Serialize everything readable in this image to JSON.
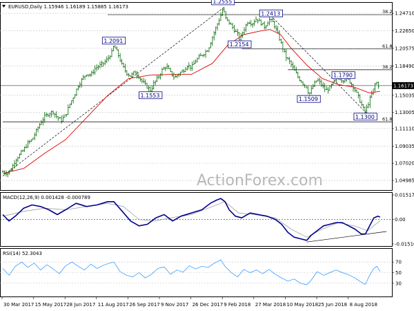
{
  "chart_data": [
    {
      "type": "line",
      "subtype": "ohlc",
      "title": "EURUSD,Daily  1.15946 1.16189 1.15885 1.16173",
      "x_tick_labels": [
        "30 Mar 2017",
        "15 May 2017",
        "28 Jun 2017",
        "11 Aug 2017",
        "26 Sep 2017",
        "9 Nov 2017",
        "26 Dec 2017",
        "9 Feb 2018",
        "27 Mar 2018",
        "10 May 2018",
        "25 Jun 2018",
        "8 Aug 2018"
      ],
      "y_tick_labels": [
        "1.24710",
        "1.22650",
        "1.20575",
        "1.18490",
        "1.16173",
        "1.15035",
        "1.13005",
        "1.11110",
        "1.09035",
        "1.07020",
        "1.04985"
      ],
      "ylim": [
        1.0385,
        1.2595
      ],
      "last_price": "1.16173",
      "price_path": [
        {
          "i": 0,
          "v": 1.06
        },
        {
          "i": 4,
          "v": 1.058
        },
        {
          "i": 8,
          "v": 1.063
        },
        {
          "i": 12,
          "v": 1.074
        },
        {
          "i": 16,
          "v": 1.08
        },
        {
          "i": 20,
          "v": 1.086
        },
        {
          "i": 24,
          "v": 1.094
        },
        {
          "i": 28,
          "v": 1.098
        },
        {
          "i": 32,
          "v": 1.108
        },
        {
          "i": 36,
          "v": 1.118
        },
        {
          "i": 40,
          "v": 1.125
        },
        {
          "i": 44,
          "v": 1.129
        },
        {
          "i": 48,
          "v": 1.131
        },
        {
          "i": 52,
          "v": 1.124
        },
        {
          "i": 56,
          "v": 1.121
        },
        {
          "i": 60,
          "v": 1.127
        },
        {
          "i": 64,
          "v": 1.14
        },
        {
          "i": 68,
          "v": 1.15
        },
        {
          "i": 72,
          "v": 1.162
        },
        {
          "i": 76,
          "v": 1.17
        },
        {
          "i": 80,
          "v": 1.176
        },
        {
          "i": 84,
          "v": 1.174
        },
        {
          "i": 88,
          "v": 1.182
        },
        {
          "i": 92,
          "v": 1.185
        },
        {
          "i": 96,
          "v": 1.188
        },
        {
          "i": 100,
          "v": 1.193
        },
        {
          "i": 104,
          "v": 1.201
        },
        {
          "i": 106,
          "v": 1.209
        },
        {
          "i": 110,
          "v": 1.199
        },
        {
          "i": 114,
          "v": 1.185
        },
        {
          "i": 118,
          "v": 1.177
        },
        {
          "i": 122,
          "v": 1.173
        },
        {
          "i": 126,
          "v": 1.178
        },
        {
          "i": 130,
          "v": 1.172
        },
        {
          "i": 134,
          "v": 1.165
        },
        {
          "i": 138,
          "v": 1.16
        },
        {
          "i": 141,
          "v": 1.156
        },
        {
          "i": 144,
          "v": 1.164
        },
        {
          "i": 148,
          "v": 1.171
        },
        {
          "i": 152,
          "v": 1.18
        },
        {
          "i": 156,
          "v": 1.185
        },
        {
          "i": 160,
          "v": 1.177
        },
        {
          "i": 164,
          "v": 1.171
        },
        {
          "i": 168,
          "v": 1.176
        },
        {
          "i": 172,
          "v": 1.179
        },
        {
          "i": 176,
          "v": 1.186
        },
        {
          "i": 180,
          "v": 1.183
        },
        {
          "i": 184,
          "v": 1.191
        },
        {
          "i": 188,
          "v": 1.196
        },
        {
          "i": 192,
          "v": 1.2
        },
        {
          "i": 196,
          "v": 1.205
        },
        {
          "i": 200,
          "v": 1.219
        },
        {
          "i": 204,
          "v": 1.232
        },
        {
          "i": 208,
          "v": 1.245
        },
        {
          "i": 210,
          "v": 1.253
        },
        {
          "i": 213,
          "v": 1.24
        },
        {
          "i": 216,
          "v": 1.236
        },
        {
          "i": 220,
          "v": 1.229
        },
        {
          "i": 224,
          "v": 1.222
        },
        {
          "i": 226,
          "v": 1.216
        },
        {
          "i": 230,
          "v": 1.228
        },
        {
          "i": 234,
          "v": 1.238
        },
        {
          "i": 238,
          "v": 1.235
        },
        {
          "i": 242,
          "v": 1.241
        },
        {
          "i": 246,
          "v": 1.236
        },
        {
          "i": 250,
          "v": 1.231
        },
        {
          "i": 254,
          "v": 1.24
        },
        {
          "i": 258,
          "v": 1.236
        },
        {
          "i": 262,
          "v": 1.224
        },
        {
          "i": 266,
          "v": 1.21
        },
        {
          "i": 270,
          "v": 1.196
        },
        {
          "i": 274,
          "v": 1.189
        },
        {
          "i": 278,
          "v": 1.18
        },
        {
          "i": 282,
          "v": 1.171
        },
        {
          "i": 286,
          "v": 1.165
        },
        {
          "i": 290,
          "v": 1.16
        },
        {
          "i": 292,
          "v": 1.151
        },
        {
          "i": 296,
          "v": 1.161
        },
        {
          "i": 300,
          "v": 1.169
        },
        {
          "i": 304,
          "v": 1.163
        },
        {
          "i": 308,
          "v": 1.156
        },
        {
          "i": 312,
          "v": 1.159
        },
        {
          "i": 316,
          "v": 1.166
        },
        {
          "i": 320,
          "v": 1.172
        },
        {
          "i": 324,
          "v": 1.168
        },
        {
          "i": 328,
          "v": 1.171
        },
        {
          "i": 332,
          "v": 1.165
        },
        {
          "i": 336,
          "v": 1.157
        },
        {
          "i": 340,
          "v": 1.146
        },
        {
          "i": 344,
          "v": 1.134
        },
        {
          "i": 346,
          "v": 1.131
        },
        {
          "i": 350,
          "v": 1.145
        },
        {
          "i": 354,
          "v": 1.158
        },
        {
          "i": 356,
          "v": 1.167
        },
        {
          "i": 358,
          "v": 1.162
        },
        {
          "i": 360,
          "v": 1.1617
        }
      ],
      "ma_path": [
        {
          "i": 0,
          "v": 1.058
        },
        {
          "i": 20,
          "v": 1.064
        },
        {
          "i": 40,
          "v": 1.082
        },
        {
          "i": 60,
          "v": 1.098
        },
        {
          "i": 80,
          "v": 1.124
        },
        {
          "i": 100,
          "v": 1.15
        },
        {
          "i": 120,
          "v": 1.17
        },
        {
          "i": 140,
          "v": 1.174
        },
        {
          "i": 160,
          "v": 1.175
        },
        {
          "i": 180,
          "v": 1.175
        },
        {
          "i": 200,
          "v": 1.188
        },
        {
          "i": 215,
          "v": 1.21
        },
        {
          "i": 230,
          "v": 1.222
        },
        {
          "i": 245,
          "v": 1.226
        },
        {
          "i": 255,
          "v": 1.228
        },
        {
          "i": 265,
          "v": 1.222
        },
        {
          "i": 275,
          "v": 1.206
        },
        {
          "i": 290,
          "v": 1.186
        },
        {
          "i": 305,
          "v": 1.17
        },
        {
          "i": 320,
          "v": 1.163
        },
        {
          "i": 335,
          "v": 1.16
        },
        {
          "i": 350,
          "v": 1.153
        },
        {
          "i": 360,
          "v": 1.155
        }
      ],
      "annotations": [
        {
          "label": "1.2555",
          "i": 210,
          "v": 1.2555
        },
        {
          "label": "1.2413",
          "i": 256,
          "v": 1.2413
        },
        {
          "label": "1.2154",
          "i": 226,
          "v": 1.2154
        },
        {
          "label": "1.2091",
          "i": 106,
          "v": 1.2091
        },
        {
          "label": "1.1553",
          "i": 141,
          "v": 1.1553
        },
        {
          "label": "1.1509",
          "i": 292,
          "v": 1.1509
        },
        {
          "label": "1.1790",
          "i": 325,
          "v": 1.179
        },
        {
          "label": "1.1300",
          "i": 346,
          "v": 1.13
        }
      ],
      "fib_levels": [
        {
          "label": "38.2",
          "v": 1.2455,
          "from_i": 100
        },
        {
          "label": "61.8",
          "v": 1.205,
          "from_i": 228
        },
        {
          "label": "38.2",
          "v": 1.1805,
          "from_i": 272
        },
        {
          "label": "61.8",
          "v": 1.119,
          "from_i": 0
        }
      ],
      "trendlines": [
        {
          "i1": 0,
          "v1": 1.055,
          "i2": 212,
          "v2": 1.255
        },
        {
          "i1": 258,
          "v1": 1.2413,
          "i2": 348,
          "v2": 1.128
        }
      ],
      "price_line": 1.16173,
      "colors": {
        "price": "#006400",
        "ma": "#e00000",
        "ann": "#000080",
        "text": "#000000",
        "grid": "#c0c0c0"
      },
      "watermark": "ActionForex.com"
    },
    {
      "type": "line",
      "title": "MACD(12,26,9) 0.001428 -0.000789",
      "ylim": [
        -0.0165,
        0.0165
      ],
      "y_tick_labels": [
        "0.015176",
        "0.00",
        "-0.015109"
      ],
      "zero_line": 0,
      "macd_path": [
        {
          "i": 0,
          "v": 0.003
        },
        {
          "i": 6,
          "v": -0.001
        },
        {
          "i": 12,
          "v": 0.002
        },
        {
          "i": 20,
          "v": 0.007
        },
        {
          "i": 28,
          "v": 0.009
        },
        {
          "i": 36,
          "v": 0.008
        },
        {
          "i": 44,
          "v": 0.006
        },
        {
          "i": 52,
          "v": 0.003
        },
        {
          "i": 60,
          "v": 0.006
        },
        {
          "i": 70,
          "v": 0.01
        },
        {
          "i": 80,
          "v": 0.008
        },
        {
          "i": 90,
          "v": 0.009
        },
        {
          "i": 100,
          "v": 0.011
        },
        {
          "i": 106,
          "v": 0.011
        },
        {
          "i": 114,
          "v": 0.005
        },
        {
          "i": 122,
          "v": -0.001
        },
        {
          "i": 130,
          "v": -0.004
        },
        {
          "i": 138,
          "v": -0.003
        },
        {
          "i": 146,
          "v": 0.001
        },
        {
          "i": 154,
          "v": 0.003
        },
        {
          "i": 162,
          "v": -0.001
        },
        {
          "i": 170,
          "v": 0.002
        },
        {
          "i": 180,
          "v": 0.004
        },
        {
          "i": 190,
          "v": 0.006
        },
        {
          "i": 198,
          "v": 0.01
        },
        {
          "i": 204,
          "v": 0.012
        },
        {
          "i": 208,
          "v": 0.013
        },
        {
          "i": 212,
          "v": 0.011
        },
        {
          "i": 216,
          "v": 0.006
        },
        {
          "i": 222,
          "v": 0.002
        },
        {
          "i": 228,
          "v": 0.001
        },
        {
          "i": 236,
          "v": 0.004
        },
        {
          "i": 244,
          "v": 0.003
        },
        {
          "i": 252,
          "v": 0.002
        },
        {
          "i": 260,
          "v": 0.0
        },
        {
          "i": 266,
          "v": -0.003
        },
        {
          "i": 272,
          "v": -0.008
        },
        {
          "i": 278,
          "v": -0.011
        },
        {
          "i": 284,
          "v": -0.012
        },
        {
          "i": 290,
          "v": -0.013
        },
        {
          "i": 294,
          "v": -0.01
        },
        {
          "i": 300,
          "v": -0.007
        },
        {
          "i": 306,
          "v": -0.004
        },
        {
          "i": 312,
          "v": -0.003
        },
        {
          "i": 318,
          "v": -0.002
        },
        {
          "i": 324,
          "v": -0.002
        },
        {
          "i": 330,
          "v": -0.004
        },
        {
          "i": 336,
          "v": -0.006
        },
        {
          "i": 342,
          "v": -0.009
        },
        {
          "i": 346,
          "v": -0.009
        },
        {
          "i": 350,
          "v": -0.004
        },
        {
          "i": 354,
          "v": 0.001
        },
        {
          "i": 358,
          "v": 0.002
        },
        {
          "i": 360,
          "v": 0.0014
        }
      ],
      "signal_path": [
        {
          "i": 0,
          "v": 0.002
        },
        {
          "i": 20,
          "v": 0.005
        },
        {
          "i": 40,
          "v": 0.007
        },
        {
          "i": 60,
          "v": 0.006
        },
        {
          "i": 80,
          "v": 0.008
        },
        {
          "i": 100,
          "v": 0.01
        },
        {
          "i": 115,
          "v": 0.008
        },
        {
          "i": 130,
          "v": 0.0
        },
        {
          "i": 145,
          "v": -0.001
        },
        {
          "i": 160,
          "v": 0.001
        },
        {
          "i": 180,
          "v": 0.003
        },
        {
          "i": 200,
          "v": 0.008
        },
        {
          "i": 212,
          "v": 0.011
        },
        {
          "i": 225,
          "v": 0.004
        },
        {
          "i": 240,
          "v": 0.003
        },
        {
          "i": 260,
          "v": 0.001
        },
        {
          "i": 275,
          "v": -0.006
        },
        {
          "i": 290,
          "v": -0.011
        },
        {
          "i": 305,
          "v": -0.006
        },
        {
          "i": 320,
          "v": -0.002
        },
        {
          "i": 335,
          "v": -0.004
        },
        {
          "i": 348,
          "v": -0.007
        },
        {
          "i": 360,
          "v": -0.0008
        }
      ],
      "trendline": {
        "i1": 290,
        "v1": -0.014,
        "i2": 366,
        "v2": -0.0075
      },
      "colors": {
        "macd": "#00008b",
        "signal": "#a0a0a0"
      }
    },
    {
      "type": "line",
      "title": "RSI(14) 52.3043",
      "ylim": [
        5,
        95
      ],
      "y_tick_labels": [
        "70",
        "50",
        "30"
      ],
      "grid_levels": [
        70,
        50,
        30
      ],
      "rsi_path": [
        {
          "i": 0,
          "v": 58
        },
        {
          "i": 6,
          "v": 45
        },
        {
          "i": 12,
          "v": 62
        },
        {
          "i": 18,
          "v": 70
        },
        {
          "i": 24,
          "v": 60
        },
        {
          "i": 30,
          "v": 68
        },
        {
          "i": 36,
          "v": 55
        },
        {
          "i": 42,
          "v": 65
        },
        {
          "i": 48,
          "v": 57
        },
        {
          "i": 54,
          "v": 48
        },
        {
          "i": 60,
          "v": 63
        },
        {
          "i": 66,
          "v": 70
        },
        {
          "i": 72,
          "v": 62
        },
        {
          "i": 78,
          "v": 55
        },
        {
          "i": 84,
          "v": 66
        },
        {
          "i": 90,
          "v": 58
        },
        {
          "i": 96,
          "v": 64
        },
        {
          "i": 102,
          "v": 68
        },
        {
          "i": 106,
          "v": 70
        },
        {
          "i": 112,
          "v": 52
        },
        {
          "i": 118,
          "v": 45
        },
        {
          "i": 124,
          "v": 42
        },
        {
          "i": 130,
          "v": 50
        },
        {
          "i": 136,
          "v": 40
        },
        {
          "i": 142,
          "v": 47
        },
        {
          "i": 148,
          "v": 58
        },
        {
          "i": 154,
          "v": 61
        },
        {
          "i": 160,
          "v": 47
        },
        {
          "i": 166,
          "v": 55
        },
        {
          "i": 172,
          "v": 51
        },
        {
          "i": 178,
          "v": 63
        },
        {
          "i": 184,
          "v": 57
        },
        {
          "i": 190,
          "v": 62
        },
        {
          "i": 196,
          "v": 60
        },
        {
          "i": 202,
          "v": 68
        },
        {
          "i": 208,
          "v": 74
        },
        {
          "i": 212,
          "v": 62
        },
        {
          "i": 218,
          "v": 50
        },
        {
          "i": 224,
          "v": 42
        },
        {
          "i": 230,
          "v": 56
        },
        {
          "i": 236,
          "v": 50
        },
        {
          "i": 242,
          "v": 55
        },
        {
          "i": 248,
          "v": 48
        },
        {
          "i": 254,
          "v": 56
        },
        {
          "i": 260,
          "v": 47
        },
        {
          "i": 266,
          "v": 40
        },
        {
          "i": 272,
          "v": 34
        },
        {
          "i": 278,
          "v": 38
        },
        {
          "i": 284,
          "v": 30
        },
        {
          "i": 290,
          "v": 27
        },
        {
          "i": 294,
          "v": 35
        },
        {
          "i": 300,
          "v": 52
        },
        {
          "i": 306,
          "v": 45
        },
        {
          "i": 312,
          "v": 50
        },
        {
          "i": 318,
          "v": 55
        },
        {
          "i": 324,
          "v": 50
        },
        {
          "i": 330,
          "v": 46
        },
        {
          "i": 336,
          "v": 40
        },
        {
          "i": 342,
          "v": 32
        },
        {
          "i": 346,
          "v": 28
        },
        {
          "i": 350,
          "v": 45
        },
        {
          "i": 354,
          "v": 58
        },
        {
          "i": 357,
          "v": 62
        },
        {
          "i": 360,
          "v": 52.3
        }
      ],
      "colors": {
        "rsi": "#1e90ff"
      }
    }
  ]
}
